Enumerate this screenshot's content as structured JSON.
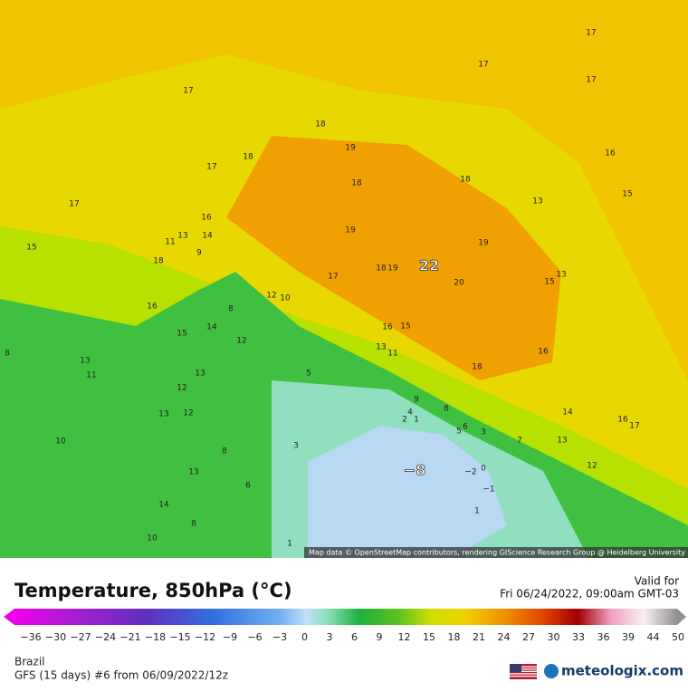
{
  "header": {
    "title": "Temperature, 850hPa (°C)",
    "valid_label": "Valid for",
    "valid_time": "Fri 06/24/2022, 09:00am GMT-03"
  },
  "map": {
    "attribution": "Map data © OpenStreetMap contributors, rendering GIScience Research Group @ Heidelberg University",
    "labels": [
      "17",
      "17",
      "17",
      "17",
      "18",
      "19",
      "18",
      "17",
      "16",
      "18",
      "18",
      "15",
      "13",
      "17",
      "16",
      "19",
      "13",
      "14",
      "11",
      "19",
      "9",
      "15",
      "18",
      "22",
      "18",
      "19",
      "17",
      "20",
      "13",
      "15",
      "12",
      "10",
      "16",
      "8",
      "14",
      "16",
      "15",
      "15",
      "12",
      "13",
      "11",
      "16",
      "8",
      "13",
      "11",
      "13",
      "5",
      "18",
      "12",
      "9",
      "8",
      "4",
      "2",
      "1",
      "13",
      "12",
      "14",
      "16",
      "17",
      "6",
      "5",
      "3",
      "7",
      "10",
      "13",
      "3",
      "8",
      "−8",
      "−2",
      "0",
      "12",
      "13",
      "6",
      "−1",
      "14",
      "1",
      "8",
      "10",
      "1"
    ]
  },
  "colorbar": {
    "ticks": [
      "−36",
      "−30",
      "−27",
      "−24",
      "−21",
      "−18",
      "−15",
      "−12",
      "−9",
      "−6",
      "−3",
      "0",
      "3",
      "6",
      "9",
      "12",
      "15",
      "18",
      "21",
      "24",
      "27",
      "30",
      "33",
      "36",
      "39",
      "44",
      "50"
    ]
  },
  "footer": {
    "region": "Brazil",
    "model": "GFS (15 days) #6 from 06/09/2022/12z",
    "brand": "meteologix.com"
  }
}
